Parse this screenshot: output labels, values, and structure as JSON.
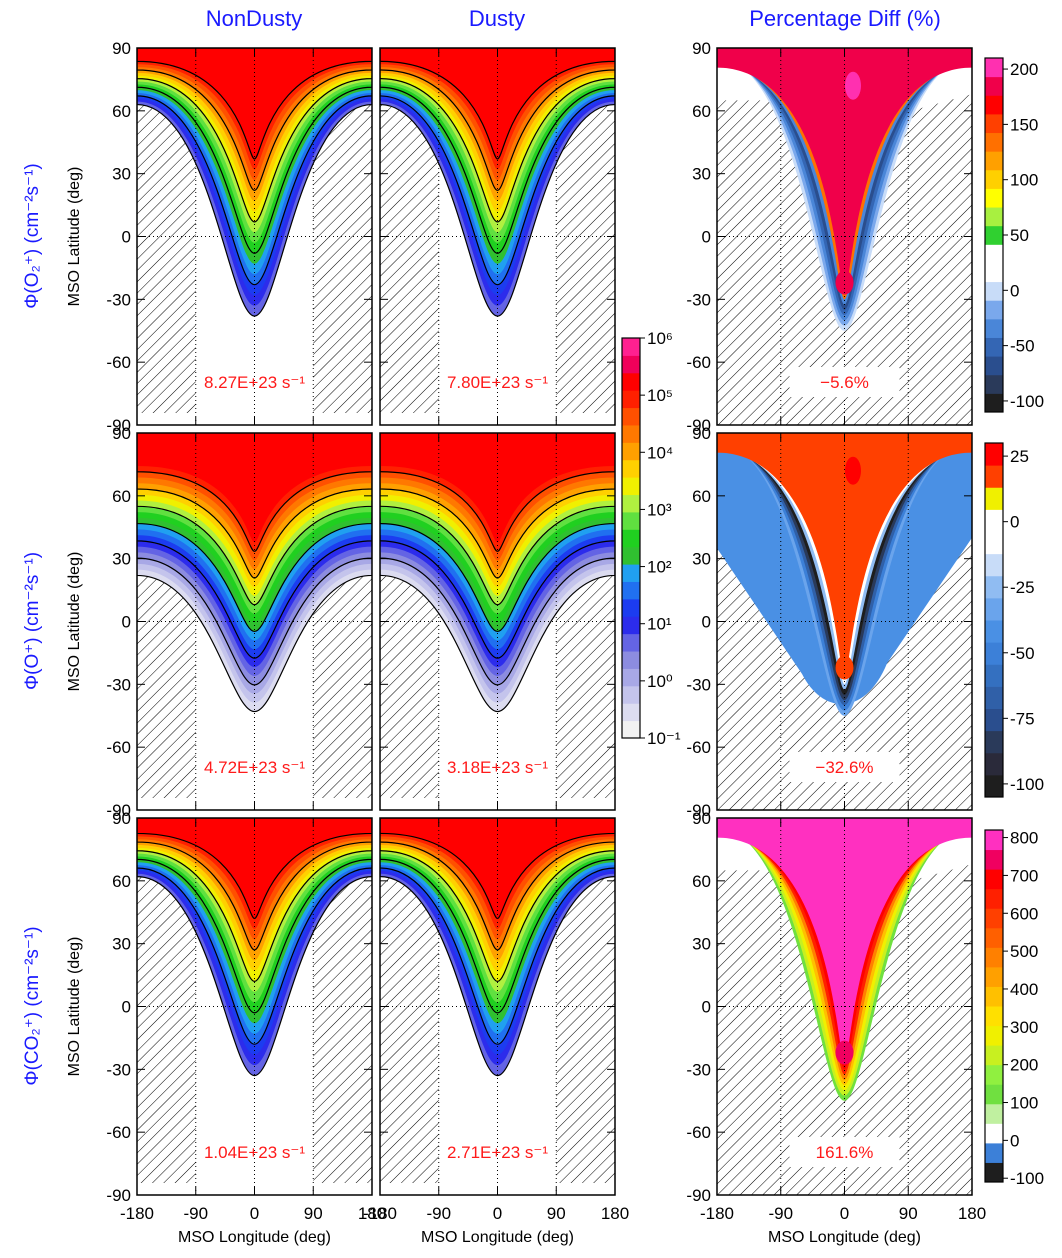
{
  "column_titles": [
    "NonDusty",
    "Dusty",
    "Percentage Diff (%)"
  ],
  "row_labels": [
    "Φ(O₂⁺) (cm⁻²s⁻¹)",
    "Φ(O⁺) (cm⁻²s⁻¹)",
    "Φ(CO₂⁺) (cm⁻²s⁻¹)"
  ],
  "chart_data": [
    {
      "type": "contour",
      "ylabel": "MSO Latitude (deg)",
      "annotation": "8.27E+23 s⁻¹",
      "xlim": [
        -180,
        180
      ],
      "ylim": [
        -90,
        90
      ],
      "xticks": [
        -180,
        -90,
        0,
        90,
        180
      ],
      "yticks": [
        -90,
        -60,
        -30,
        0,
        30,
        60,
        90
      ],
      "tick_labels": [
        "y"
      ]
    },
    {
      "type": "contour",
      "annotation": "7.80E+23 s⁻¹",
      "xlim": [
        -180,
        180
      ],
      "ylim": [
        -90,
        90
      ],
      "xticks": [
        -180,
        -90,
        0,
        90,
        180
      ],
      "yticks": [
        -90,
        -60,
        -30,
        0,
        30,
        60,
        90
      ],
      "tick_labels": []
    },
    {
      "type": "contour",
      "annotation": "−5.6%",
      "xlim": [
        -180,
        180
      ],
      "ylim": [
        -90,
        90
      ],
      "xticks": [
        -180,
        -90,
        0,
        90,
        180
      ],
      "yticks": [
        -90,
        -60,
        -30,
        0,
        30,
        60,
        90
      ],
      "tick_labels": [
        "y"
      ]
    },
    {
      "type": "contour",
      "ylabel": "MSO Latitude (deg)",
      "annotation": "4.72E+23 s⁻¹",
      "xlim": [
        -180,
        180
      ],
      "ylim": [
        -90,
        90
      ],
      "xticks": [
        -180,
        -90,
        0,
        90,
        180
      ],
      "yticks": [
        -90,
        -60,
        -30,
        0,
        30,
        60,
        90
      ],
      "tick_labels": [
        "y"
      ]
    },
    {
      "type": "contour",
      "annotation": "3.18E+23 s⁻¹",
      "xlim": [
        -180,
        180
      ],
      "ylim": [
        -90,
        90
      ],
      "xticks": [
        -180,
        -90,
        0,
        90,
        180
      ],
      "yticks": [
        -90,
        -60,
        -30,
        0,
        30,
        60,
        90
      ],
      "tick_labels": []
    },
    {
      "type": "contour",
      "annotation": "−32.6%",
      "xlim": [
        -180,
        180
      ],
      "ylim": [
        -90,
        90
      ],
      "xticks": [
        -180,
        -90,
        0,
        90,
        180
      ],
      "yticks": [
        -90,
        -60,
        -30,
        0,
        30,
        60,
        90
      ],
      "tick_labels": [
        "y"
      ]
    },
    {
      "type": "contour",
      "ylabel": "MSO Latitude (deg)",
      "xlabel": "MSO Longitude (deg)",
      "annotation": "1.04E+23 s⁻¹",
      "xlim": [
        -180,
        180
      ],
      "ylim": [
        -90,
        90
      ],
      "xticks": [
        -180,
        -90,
        0,
        90,
        180
      ],
      "yticks": [
        -90,
        -60,
        -30,
        0,
        30,
        60,
        90
      ],
      "tick_labels": [
        "x",
        "y"
      ]
    },
    {
      "type": "contour",
      "xlabel": "MSO Longitude (deg)",
      "annotation": "2.71E+23 s⁻¹",
      "xlim": [
        -180,
        180
      ],
      "ylim": [
        -90,
        90
      ],
      "xticks": [
        -180,
        -90,
        0,
        90,
        180
      ],
      "yticks": [
        -90,
        -60,
        -30,
        0,
        30,
        60,
        90
      ],
      "tick_labels": [
        "x"
      ]
    },
    {
      "type": "contour",
      "xlabel": "MSO Longitude (deg)",
      "annotation": "161.6%",
      "xlim": [
        -180,
        180
      ],
      "ylim": [
        -90,
        90
      ],
      "xticks": [
        -180,
        -90,
        0,
        90,
        180
      ],
      "yticks": [
        -90,
        -60,
        -30,
        0,
        30,
        60,
        90
      ],
      "tick_labels": [
        "x",
        "y"
      ]
    },
    {
      "type": "colorbar",
      "log": true,
      "ylim": [
        0.1,
        1000000
      ],
      "yticks": [
        {
          "value": 0.1,
          "label": "10⁻¹"
        },
        {
          "value": 1,
          "label": "10⁰"
        },
        {
          "value": 10,
          "label": "10¹"
        },
        {
          "value": 100,
          "label": "10²"
        },
        {
          "value": 1000,
          "label": "10³"
        },
        {
          "value": 10000,
          "label": "10⁴"
        },
        {
          "value": 100000,
          "label": "10⁵"
        },
        {
          "value": 1000000,
          "label": "10⁶"
        }
      ],
      "colors": [
        "#f2f2f2",
        "#dcdcf0",
        "#c4c4ec",
        "#a8a8e6",
        "#8c8ce0",
        "#6464e4",
        "#2c2cec",
        "#1c3cf0",
        "#2070f0",
        "#20a0f0",
        "#30c030",
        "#20d020",
        "#60e040",
        "#b0f040",
        "#f0f000",
        "#ffd000",
        "#ffa000",
        "#ff7800",
        "#ff5000",
        "#ff2000",
        "#ff0000",
        "#f0005a",
        "#ff2090"
      ]
    },
    {
      "type": "colorbar",
      "log": false,
      "ylim": [
        -110,
        210
      ],
      "yticks": [
        -100,
        -50,
        0,
        50,
        100,
        150,
        200
      ],
      "colors": [
        "#1e1e1e",
        "#2a3a5a",
        "#2a4e8e",
        "#3466b4",
        "#4a86d8",
        "#7aa8ec",
        "#c8dcf8",
        "#ffffff",
        "#ffffff",
        "#30d030",
        "#a8f040",
        "#ffff00",
        "#ffd000",
        "#ffa000",
        "#ff7000",
        "#ff4000",
        "#ff0000",
        "#f0004a",
        "#ff30b0"
      ]
    },
    {
      "type": "colorbar",
      "log": false,
      "ylim": [
        -105,
        30
      ],
      "yticks": [
        -100,
        -75,
        -50,
        -25,
        0,
        25
      ],
      "colors": [
        "#1e1e1e",
        "#2a2a3a",
        "#2a3a5a",
        "#2a4e8e",
        "#3060a8",
        "#3470c0",
        "#3c80d8",
        "#4a90e4",
        "#6aa4ec",
        "#90bcf2",
        "#c8dcf8",
        "#ffffff",
        "#ffffff",
        "#f0f000",
        "#ff4000",
        "#ff0000"
      ]
    },
    {
      "type": "colorbar",
      "log": false,
      "ylim": [
        -110,
        820
      ],
      "yticks": [
        -100,
        0,
        100,
        200,
        300,
        400,
        500,
        600,
        700,
        800
      ],
      "colors": [
        "#1e1e1e",
        "#3c80d8",
        "#ffffff",
        "#c0f0a0",
        "#70e040",
        "#90f040",
        "#c8f020",
        "#f0f000",
        "#ffe000",
        "#ffc000",
        "#ffa000",
        "#ff8000",
        "#ff6000",
        "#ff4000",
        "#ff2000",
        "#ff0000",
        "#f00060",
        "#ff30c0"
      ]
    }
  ]
}
